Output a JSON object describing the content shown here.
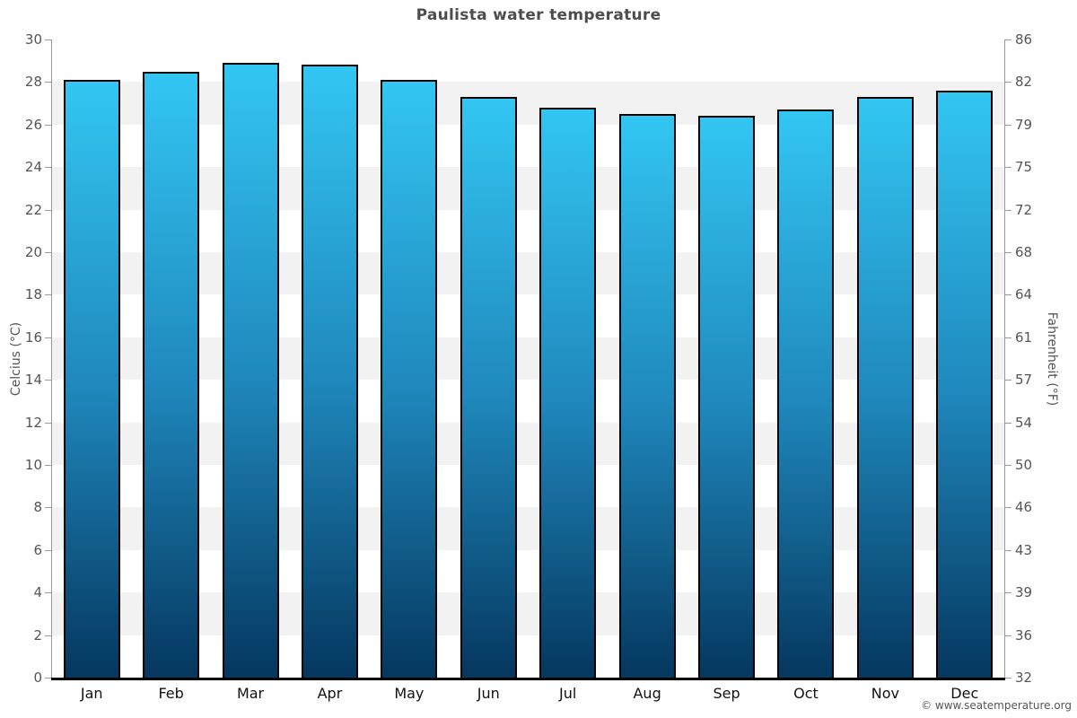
{
  "title": "Paulista water temperature",
  "watermark": "© www.seatemperature.org",
  "colors": {
    "bar_gradient_top": "#33c6f3",
    "bar_gradient_mid": "#1f87bb",
    "bar_gradient_bottom": "#05375f",
    "bar_border": "#000000",
    "band_gray": "#f2f2f2",
    "band_white": "#ffffff",
    "axis_line": "#9a9a9a",
    "x_axis_line": "#000000",
    "title_text": "#4d4d4d",
    "tick_text": "#555555",
    "month_text": "#111111",
    "axis_title_text": "#555555",
    "watermark_text": "#555555"
  },
  "chart_data": {
    "type": "bar",
    "title": "Paulista water temperature",
    "series_name": "Water temperature",
    "unit_left": "°C",
    "unit_right": "°F",
    "categories": [
      "Jan",
      "Feb",
      "Mar",
      "Apr",
      "May",
      "Jun",
      "Jul",
      "Aug",
      "Sep",
      "Oct",
      "Nov",
      "Dec"
    ],
    "values": [
      28.1,
      28.5,
      28.9,
      28.8,
      28.1,
      27.3,
      26.8,
      26.5,
      26.4,
      26.7,
      27.3,
      27.6
    ],
    "values_fahrenheit": [
      82.6,
      83.3,
      84.0,
      83.8,
      82.6,
      81.1,
      80.2,
      79.7,
      79.5,
      80.1,
      81.1,
      81.7
    ],
    "xlabel": "",
    "ylabel_left": "Celcius (°C)",
    "ylabel_right": "Fahrenheit (°F)",
    "ylim_left": [
      0,
      30
    ],
    "ylim_right": [
      32,
      86
    ],
    "y_left_ticks": [
      30,
      28,
      26,
      24,
      22,
      20,
      18,
      16,
      14,
      12,
      10,
      8,
      6,
      4,
      2,
      0
    ],
    "y_right_ticks": [
      86,
      82,
      79,
      75,
      72,
      68,
      64,
      61,
      57,
      54,
      50,
      46,
      43,
      39,
      36,
      32
    ],
    "grid": "alternating-horizontal-bands",
    "legend": "none"
  }
}
